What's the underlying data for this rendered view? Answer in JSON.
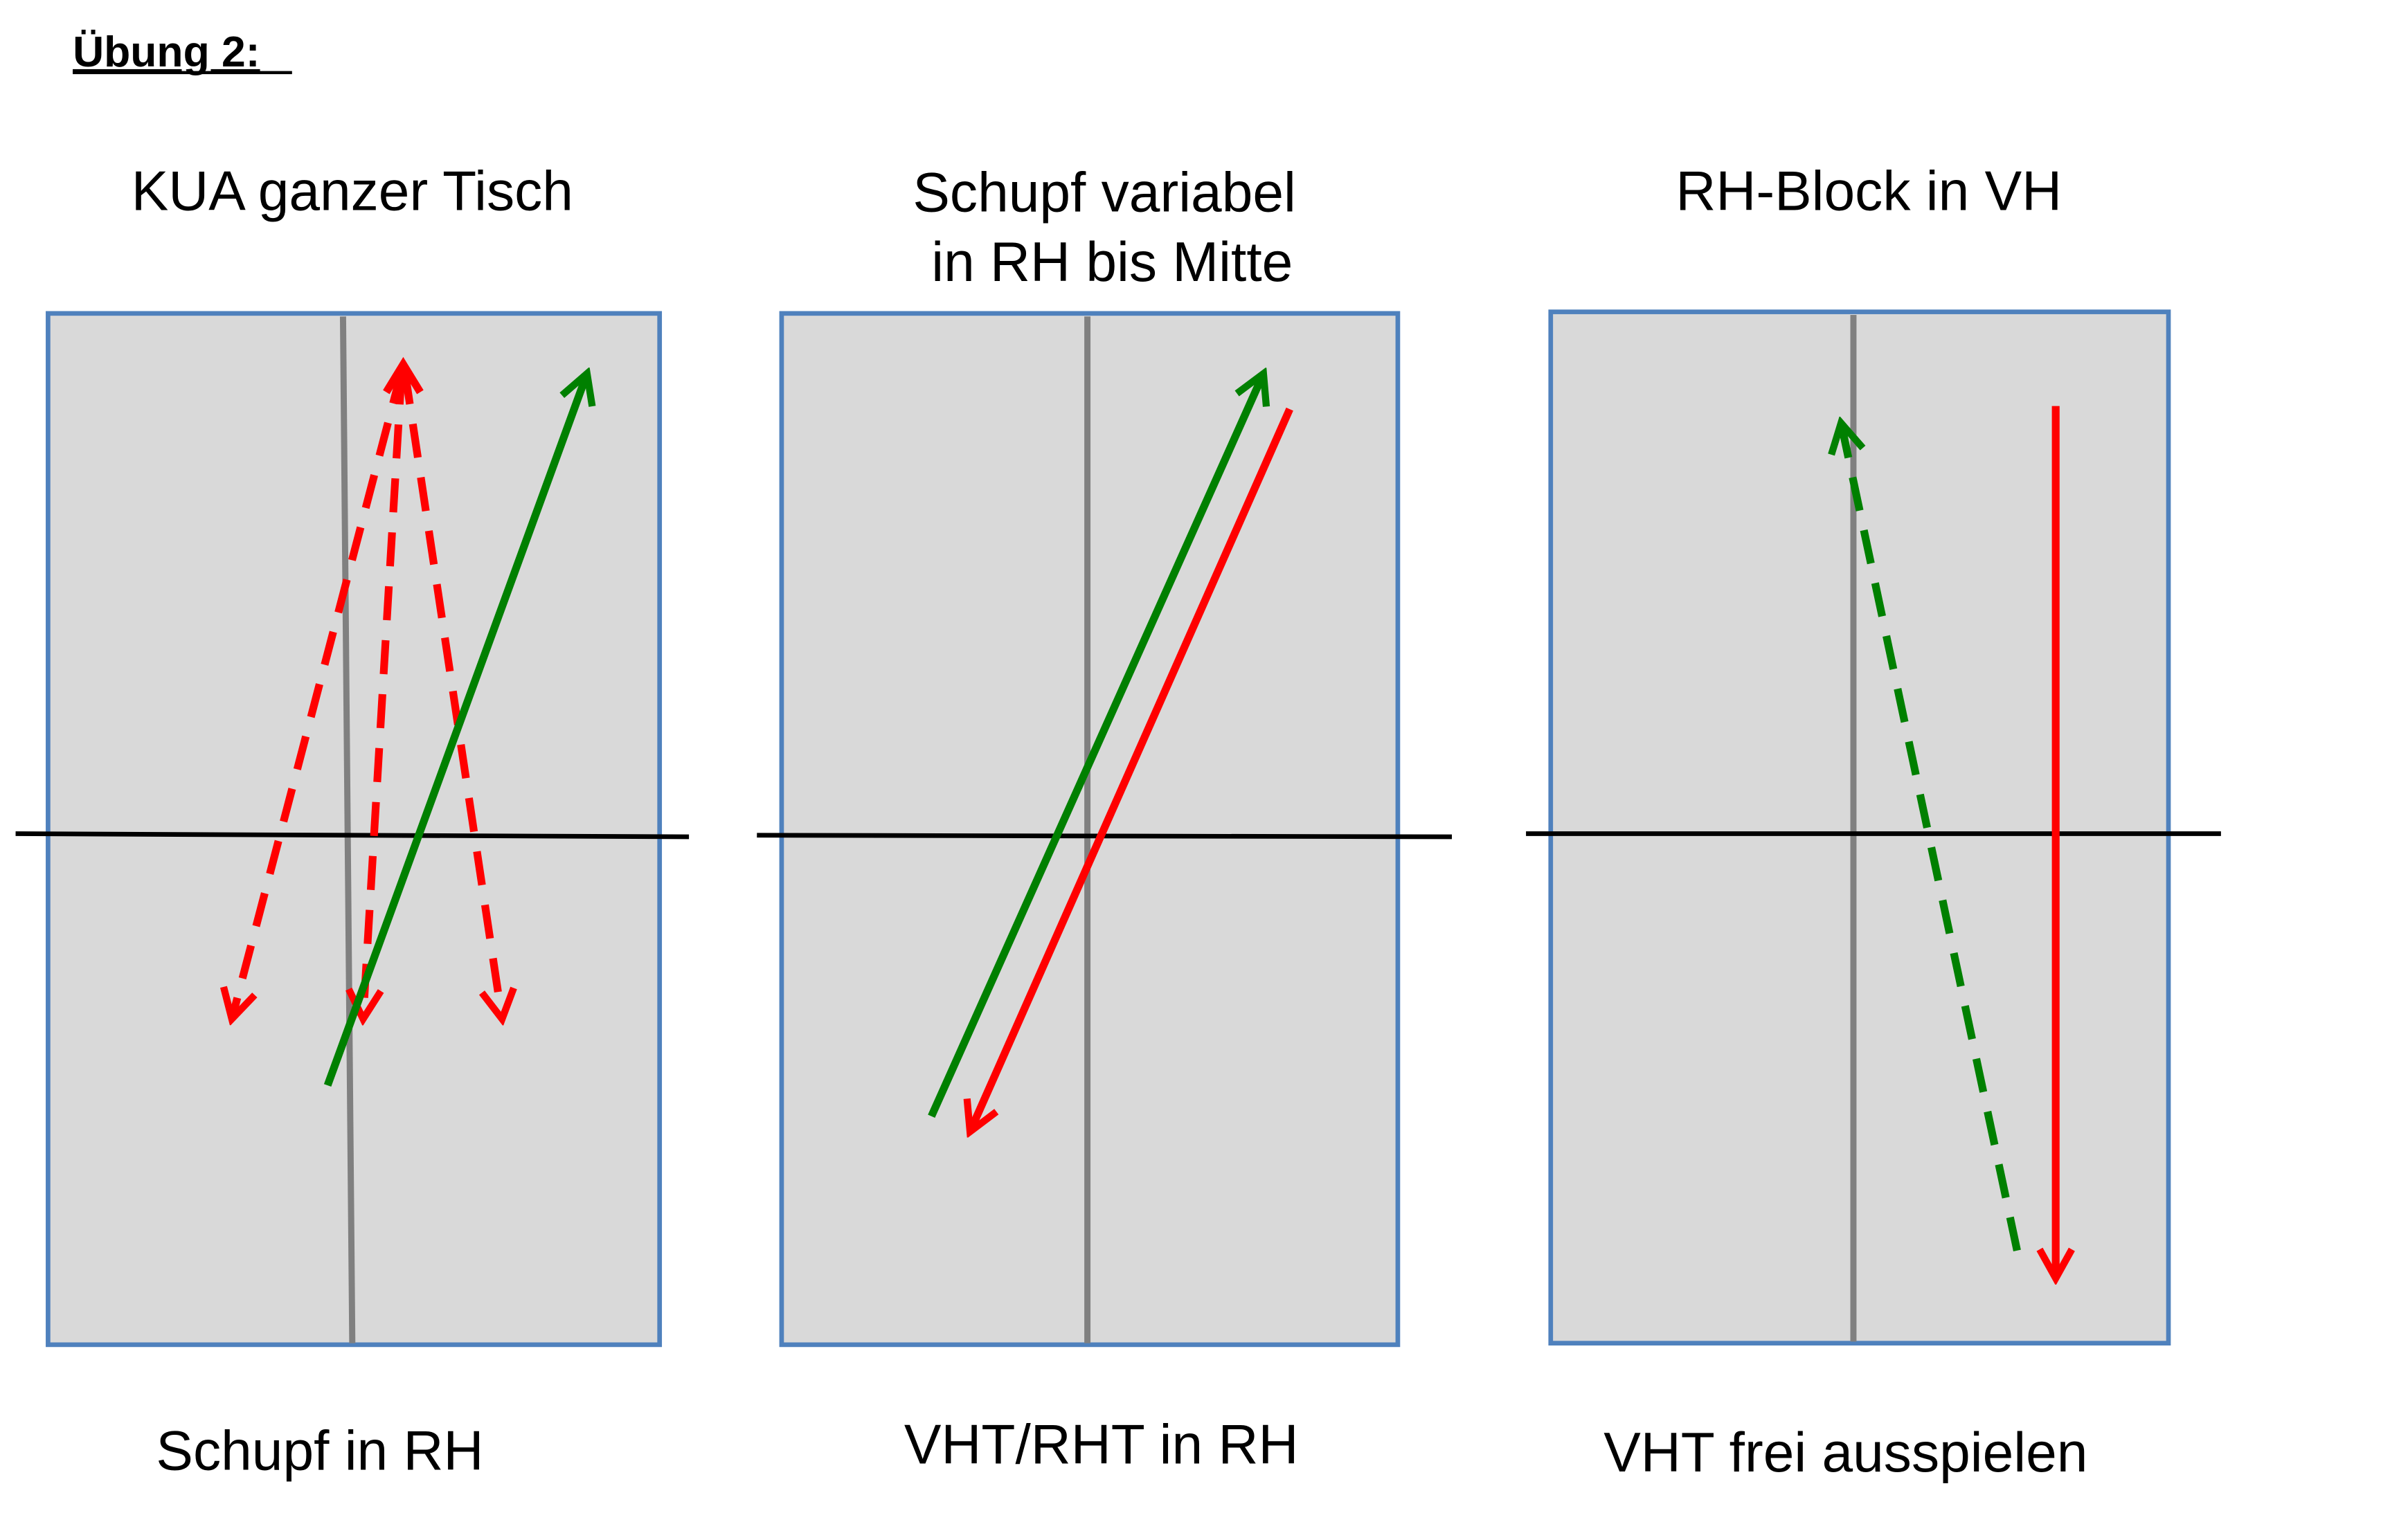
{
  "title": "Übung 2:",
  "panels": [
    {
      "heading_lines": [
        "KUA ganzer Tisch"
      ],
      "caption": "Schupf in RH"
    },
    {
      "heading_lines": [
        "Schupf variabel",
        "in RH bis Mitte"
      ],
      "caption": "VHT/RHT in RH"
    },
    {
      "heading_lines": [
        "RH-Block in VH"
      ],
      "caption": "VHT frei ausspielen"
    }
  ]
}
